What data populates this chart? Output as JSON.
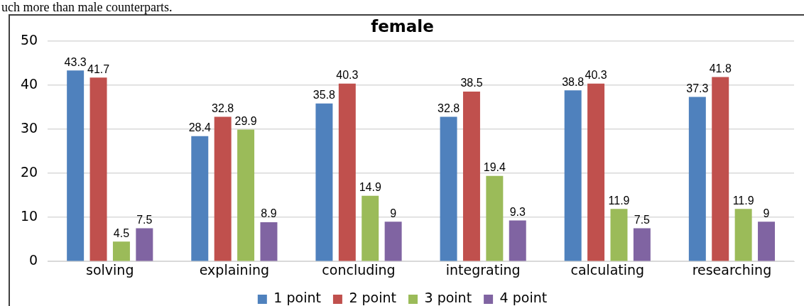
{
  "chart_data": {
    "type": "bar",
    "title": "female",
    "annotations": [
      "uch more than male counterparts."
    ],
    "categories": [
      "solving",
      "explaining",
      "concluding",
      "integrating",
      "calculating",
      "researching"
    ],
    "series": [
      {
        "name": "1 point",
        "color": "#4f81bd",
        "values": [
          43.3,
          28.4,
          35.8,
          32.8,
          38.8,
          37.3
        ]
      },
      {
        "name": "2 point",
        "color": "#c0504d",
        "values": [
          41.7,
          32.8,
          40.3,
          38.5,
          40.3,
          41.8
        ]
      },
      {
        "name": "3 point",
        "color": "#9bbb59",
        "values": [
          4.5,
          29.9,
          14.9,
          19.4,
          11.9,
          11.9
        ]
      },
      {
        "name": "4 point",
        "color": "#8064a2",
        "values": [
          7.5,
          8.9,
          9,
          9.3,
          7.5,
          9
        ]
      }
    ],
    "ylim": [
      0,
      50
    ],
    "yticks": [
      0,
      10,
      20,
      30,
      40,
      50
    ],
    "grid": "y",
    "legend": "bottom",
    "data_labels": true
  }
}
